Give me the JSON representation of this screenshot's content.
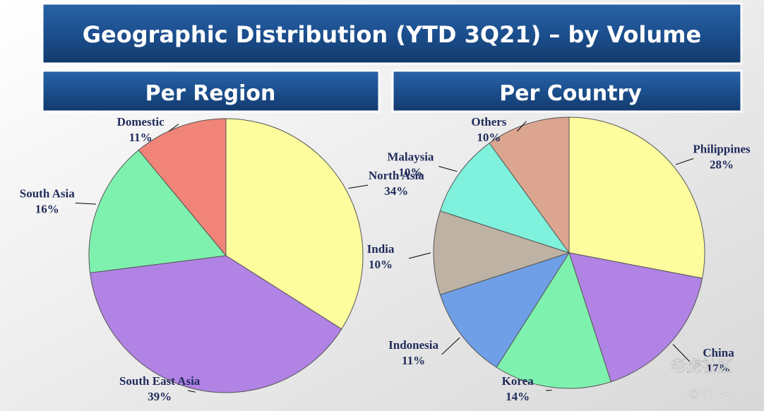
{
  "title": "Geographic Distribution (YTD 3Q21) – by Volume",
  "chart_data": [
    {
      "type": "pie",
      "title": "Per Region",
      "categories": [
        "North Asia",
        "South East Asia",
        "South Asia",
        "Domestic"
      ],
      "values": [
        34,
        39,
        16,
        11
      ],
      "value_labels": [
        "34%",
        "39%",
        "16%",
        "11%"
      ],
      "colors": [
        "#fdfd9e",
        "#b183e4",
        "#7ff1ae",
        "#f08478"
      ]
    },
    {
      "type": "pie",
      "title": "Per Country",
      "categories": [
        "Philippines",
        "China",
        "Korea",
        "Indonesia",
        "India",
        "Malaysia",
        "Others"
      ],
      "values": [
        28,
        17,
        14,
        11,
        10,
        10,
        10
      ],
      "value_labels": [
        "28%",
        "17%",
        "14%",
        "11%",
        "10%",
        "10%",
        "10%"
      ],
      "colors": [
        "#fdfd9e",
        "#b183e4",
        "#7ff1ae",
        "#6f9fe6",
        "#bdb2a3",
        "#7ff1dc",
        "#dba58f"
      ]
    }
  ],
  "watermark": [
    "老虎社区",
    "@Nio Ben"
  ]
}
